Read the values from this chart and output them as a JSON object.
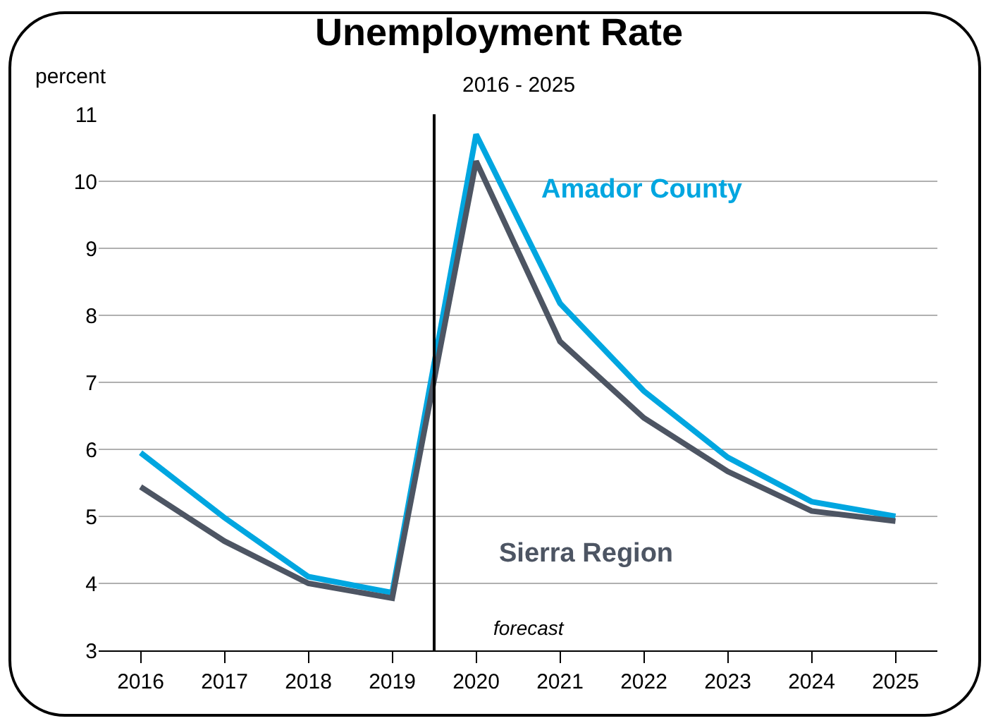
{
  "chart_data": {
    "type": "line",
    "title": "Unemployment Rate",
    "subtitle": "2016 - 2025",
    "ylabel": "percent",
    "x": [
      2016,
      2017,
      2018,
      2019,
      2020,
      2021,
      2022,
      2023,
      2024,
      2025
    ],
    "xlim": [
      2015.5,
      2025.5
    ],
    "xticks": [
      2016,
      2017,
      2018,
      2019,
      2020,
      2021,
      2022,
      2023,
      2024,
      2025
    ],
    "ylim": [
      3,
      11
    ],
    "yticks": [
      3,
      4,
      5,
      6,
      7,
      8,
      9,
      10,
      11
    ],
    "grid": "y",
    "legend": false,
    "series": [
      {
        "name": "Amador County",
        "color": "#00a6e0",
        "values": [
          5.95,
          4.98,
          4.1,
          3.86,
          10.7,
          8.18,
          6.87,
          5.88,
          5.22,
          5.0
        ]
      },
      {
        "name": "Sierra Region",
        "color": "#4d5563",
        "values": [
          5.44,
          4.63,
          4.0,
          3.78,
          10.3,
          7.61,
          6.47,
          5.67,
          5.08,
          4.93
        ]
      }
    ],
    "ref_lines": [
      {
        "axis": "x",
        "value": 2019.5,
        "label": "forecast",
        "color": "#000000"
      }
    ]
  }
}
